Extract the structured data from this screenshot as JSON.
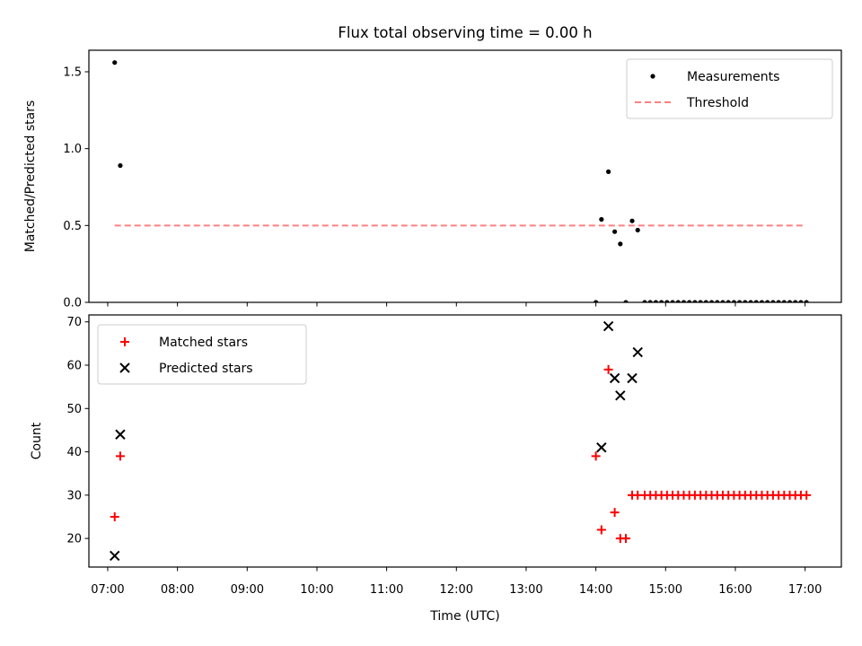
{
  "chart_data": [
    {
      "type": "scatter",
      "title": "Flux total observing time = 0.00 h",
      "xlabel": "",
      "ylabel": "Matched/Predicted stars",
      "xlim": [
        6.73,
        17.52
      ],
      "ylim": [
        0.0,
        1.64
      ],
      "yticks": [
        "0.0",
        "0.5",
        "1.0",
        "1.5"
      ],
      "legend": {
        "placement": "top-right",
        "entries": [
          "Measurements",
          "Threshold"
        ]
      },
      "threshold": {
        "name": "Threshold",
        "value": 0.5,
        "x_start": 7.1,
        "x_end": 17.0,
        "color": "#ff8080"
      },
      "series": [
        {
          "name": "Measurements",
          "color": "#000000",
          "points": [
            [
              7.1,
              1.56
            ],
            [
              7.18,
              0.89
            ],
            [
              14.0,
              0.0
            ],
            [
              14.08,
              0.54
            ],
            [
              14.18,
              0.85
            ],
            [
              14.27,
              0.46
            ],
            [
              14.35,
              0.38
            ],
            [
              14.43,
              0.0
            ],
            [
              14.52,
              0.53
            ],
            [
              14.6,
              0.47
            ],
            [
              14.7,
              0.0
            ],
            [
              14.78,
              0.0
            ],
            [
              14.86,
              0.0
            ],
            [
              14.94,
              0.0
            ],
            [
              15.02,
              0.0
            ],
            [
              15.1,
              0.0
            ],
            [
              15.18,
              0.0
            ],
            [
              15.26,
              0.0
            ],
            [
              15.34,
              0.0
            ],
            [
              15.42,
              0.0
            ],
            [
              15.5,
              0.0
            ],
            [
              15.58,
              0.0
            ],
            [
              15.66,
              0.0
            ],
            [
              15.74,
              0.0
            ],
            [
              15.82,
              0.0
            ],
            [
              15.9,
              0.0
            ],
            [
              15.98,
              0.0
            ],
            [
              16.06,
              0.0
            ],
            [
              16.14,
              0.0
            ],
            [
              16.22,
              0.0
            ],
            [
              16.3,
              0.0
            ],
            [
              16.38,
              0.0
            ],
            [
              16.46,
              0.0
            ],
            [
              16.54,
              0.0
            ],
            [
              16.62,
              0.0
            ],
            [
              16.7,
              0.0
            ],
            [
              16.78,
              0.0
            ],
            [
              16.86,
              0.0
            ],
            [
              16.94,
              0.0
            ],
            [
              17.02,
              0.0
            ]
          ]
        }
      ]
    },
    {
      "type": "scatter",
      "title": "",
      "xlabel": "Time (UTC)",
      "ylabel": "Count",
      "xlim": [
        6.73,
        17.52
      ],
      "ylim": [
        13.4,
        71.6
      ],
      "xticks": [
        "07:00",
        "08:00",
        "09:00",
        "10:00",
        "11:00",
        "12:00",
        "13:00",
        "14:00",
        "15:00",
        "16:00",
        "17:00"
      ],
      "yticks": [
        "20",
        "30",
        "40",
        "50",
        "60",
        "70"
      ],
      "legend": {
        "placement": "top-left",
        "entries": [
          "Matched stars",
          "Predicted stars"
        ]
      },
      "series": [
        {
          "name": "Matched stars",
          "marker": "plus",
          "color": "#ff0000",
          "points": [
            [
              7.1,
              25
            ],
            [
              7.18,
              39
            ],
            [
              14.0,
              39
            ],
            [
              14.08,
              22
            ],
            [
              14.18,
              59
            ],
            [
              14.27,
              26
            ],
            [
              14.35,
              20
            ],
            [
              14.43,
              20
            ],
            [
              14.52,
              30
            ],
            [
              14.6,
              30
            ],
            [
              14.7,
              30
            ],
            [
              14.78,
              30
            ],
            [
              14.86,
              30
            ],
            [
              14.94,
              30
            ],
            [
              15.02,
              30
            ],
            [
              15.1,
              30
            ],
            [
              15.18,
              30
            ],
            [
              15.26,
              30
            ],
            [
              15.34,
              30
            ],
            [
              15.42,
              30
            ],
            [
              15.5,
              30
            ],
            [
              15.58,
              30
            ],
            [
              15.66,
              30
            ],
            [
              15.74,
              30
            ],
            [
              15.82,
              30
            ],
            [
              15.9,
              30
            ],
            [
              15.98,
              30
            ],
            [
              16.06,
              30
            ],
            [
              16.14,
              30
            ],
            [
              16.22,
              30
            ],
            [
              16.3,
              30
            ],
            [
              16.38,
              30
            ],
            [
              16.46,
              30
            ],
            [
              16.54,
              30
            ],
            [
              16.62,
              30
            ],
            [
              16.7,
              30
            ],
            [
              16.78,
              30
            ],
            [
              16.86,
              30
            ],
            [
              16.94,
              30
            ],
            [
              17.02,
              30
            ]
          ]
        },
        {
          "name": "Predicted stars",
          "marker": "x",
          "color": "#000000",
          "points": [
            [
              7.1,
              16
            ],
            [
              7.18,
              44
            ],
            [
              14.08,
              41
            ],
            [
              14.18,
              69
            ],
            [
              14.27,
              57
            ],
            [
              14.35,
              53
            ],
            [
              14.52,
              57
            ],
            [
              14.6,
              63
            ]
          ]
        }
      ]
    }
  ]
}
